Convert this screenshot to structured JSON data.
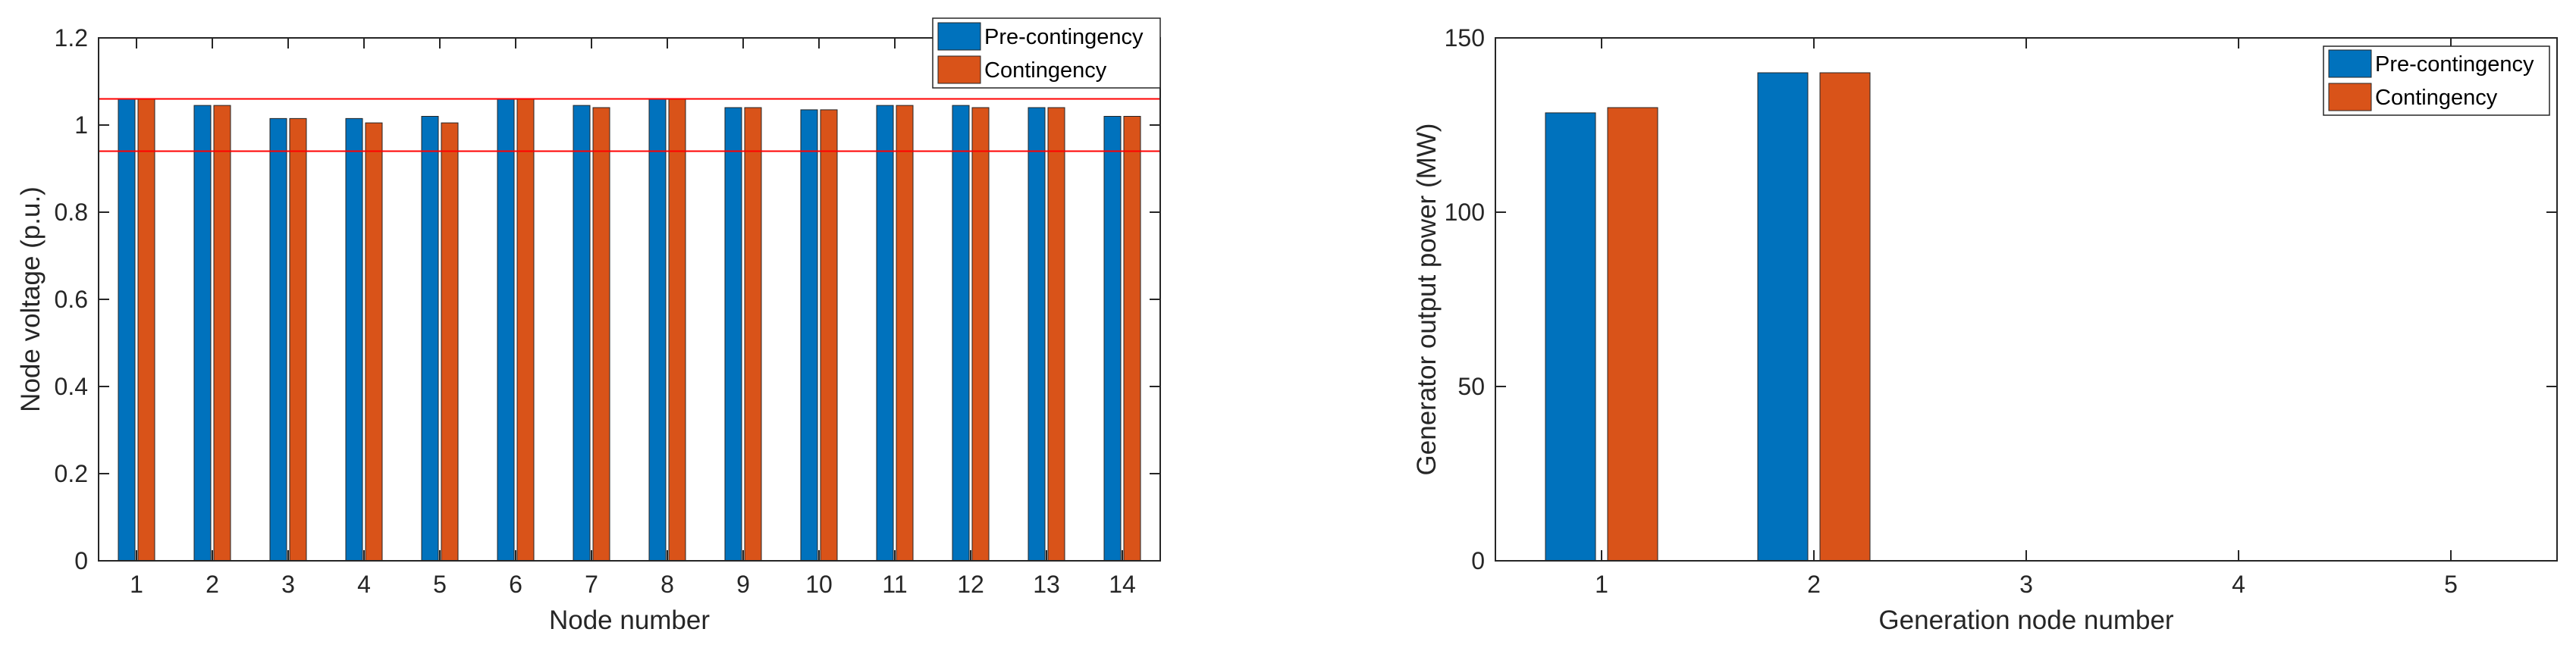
{
  "chart_data": [
    {
      "type": "bar",
      "xlabel": "Node number",
      "ylabel": "Node voltage (p.u.)",
      "categories": [
        "1",
        "2",
        "3",
        "4",
        "5",
        "6",
        "7",
        "8",
        "9",
        "10",
        "11",
        "12",
        "13",
        "14"
      ],
      "ylim": [
        0,
        1.2
      ],
      "yticks": [
        "0",
        "0.2",
        "0.4",
        "0.6",
        "0.8",
        "1",
        "1.2"
      ],
      "ytick_values": [
        0,
        0.2,
        0.4,
        0.6,
        0.8,
        1.0,
        1.2
      ],
      "series": [
        {
          "name": "Pre-contingency",
          "color": "#0072BD",
          "values": [
            1.06,
            1.045,
            1.015,
            1.015,
            1.02,
            1.06,
            1.045,
            1.06,
            1.04,
            1.035,
            1.045,
            1.045,
            1.04,
            1.02
          ]
        },
        {
          "name": "Contingency",
          "color": "#D95319",
          "values": [
            1.06,
            1.045,
            1.015,
            1.005,
            1.005,
            1.06,
            1.04,
            1.06,
            1.04,
            1.035,
            1.045,
            1.04,
            1.04,
            1.02
          ]
        }
      ],
      "reference_lines": [
        1.06,
        0.94
      ],
      "reference_color": "#FF0000",
      "legend": "top-right"
    },
    {
      "type": "bar",
      "xlabel": "Generation node number",
      "ylabel": "Generator output power (MW)",
      "categories": [
        "1",
        "2",
        "3",
        "4",
        "5"
      ],
      "ylim": [
        0,
        150
      ],
      "yticks": [
        "0",
        "50",
        "100",
        "150"
      ],
      "ytick_values": [
        0,
        50,
        100,
        150
      ],
      "series": [
        {
          "name": "Pre-contingency",
          "color": "#0072BD",
          "values": [
            128.5,
            140,
            0,
            0,
            0
          ]
        },
        {
          "name": "Contingency",
          "color": "#D95319",
          "values": [
            130,
            140,
            0,
            0,
            0
          ]
        }
      ],
      "legend": "top-right"
    }
  ]
}
